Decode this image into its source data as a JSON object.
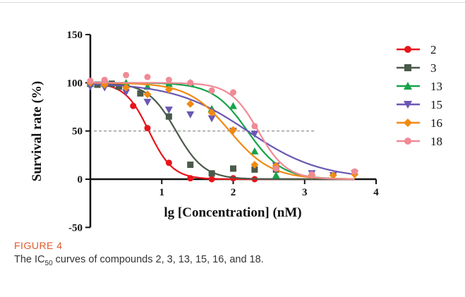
{
  "figure": {
    "label": "FIGURE 4",
    "caption_pre": "The IC",
    "caption_sub": "50",
    "caption_post": " curves of compounds 2, 3, 13, 15, 16, and 18."
  },
  "chart_data": {
    "type": "scatter",
    "xlabel": "lg [Concentration] (nM)",
    "ylabel": "Survival rate (%)",
    "xlim": [
      0,
      4
    ],
    "ylim": [
      -50,
      150
    ],
    "x_ticks": [
      1,
      2,
      3,
      4
    ],
    "y_ticks": [
      -50,
      0,
      50,
      100,
      150
    ],
    "reference_line_y": 50,
    "grid": false,
    "legend_position": "right",
    "series": [
      {
        "name": "2",
        "color": "#e8141b",
        "marker": "circle",
        "ic50_log": 0.82,
        "hill": 2.6,
        "points": [
          [
            0.0,
            98
          ],
          [
            0.6,
            76
          ],
          [
            0.8,
            53
          ],
          [
            1.1,
            17
          ],
          [
            1.4,
            1
          ],
          [
            1.7,
            0
          ],
          [
            2.0,
            1
          ],
          [
            2.3,
            0
          ]
        ]
      },
      {
        "name": "3",
        "color": "#4a5a4a",
        "marker": "square",
        "ic50_log": 1.2,
        "hill": 2.2,
        "points": [
          [
            0.0,
            100
          ],
          [
            0.1,
            98
          ],
          [
            0.2,
            99
          ],
          [
            0.3,
            99
          ],
          [
            0.4,
            96
          ],
          [
            0.7,
            89
          ],
          [
            1.1,
            65
          ],
          [
            1.4,
            15
          ],
          [
            1.7,
            6
          ],
          [
            2.0,
            11
          ],
          [
            2.3,
            10
          ],
          [
            2.6,
            10
          ]
        ]
      },
      {
        "name": "13",
        "color": "#17a34a",
        "marker": "triangle-up",
        "ic50_log": 2.2,
        "hill": 1.8,
        "points": [
          [
            0.0,
            99
          ],
          [
            0.2,
            99
          ],
          [
            0.5,
            100
          ],
          [
            0.8,
            96
          ],
          [
            1.1,
            99
          ],
          [
            1.4,
            100
          ],
          [
            1.7,
            73
          ],
          [
            2.0,
            76
          ],
          [
            2.3,
            29
          ],
          [
            2.6,
            4
          ]
        ]
      },
      {
        "name": "15",
        "color": "#6a57b3",
        "marker": "triangle-down",
        "ic50_log": 2.2,
        "hill": 0.85,
        "points": [
          [
            0.0,
            96
          ],
          [
            0.2,
            95
          ],
          [
            0.5,
            90
          ],
          [
            0.8,
            80
          ],
          [
            1.1,
            72
          ],
          [
            1.4,
            67
          ],
          [
            1.7,
            63
          ],
          [
            2.0,
            50
          ],
          [
            2.3,
            47
          ],
          [
            2.6,
            14
          ],
          [
            3.1,
            6
          ],
          [
            3.4,
            4
          ],
          [
            3.7,
            6
          ]
        ]
      },
      {
        "name": "16",
        "color": "#f08a12",
        "marker": "diamond",
        "ic50_log": 1.95,
        "hill": 1.5,
        "points": [
          [
            0.0,
            100
          ],
          [
            0.2,
            98
          ],
          [
            0.5,
            95
          ],
          [
            0.8,
            88
          ],
          [
            1.1,
            93
          ],
          [
            1.4,
            78
          ],
          [
            1.7,
            69
          ],
          [
            2.0,
            51
          ],
          [
            2.3,
            15
          ],
          [
            2.6,
            14
          ],
          [
            3.1,
            4
          ],
          [
            3.4,
            4
          ],
          [
            3.7,
            5
          ]
        ]
      },
      {
        "name": "18",
        "color": "#f08a96",
        "marker": "circle",
        "ic50_log": 2.35,
        "hill": 2.2,
        "points": [
          [
            0.0,
            102
          ],
          [
            0.2,
            103
          ],
          [
            0.5,
            108
          ],
          [
            0.8,
            106
          ],
          [
            1.1,
            103
          ],
          [
            1.4,
            100
          ],
          [
            1.7,
            92
          ],
          [
            2.0,
            90
          ],
          [
            2.3,
            55
          ],
          [
            2.6,
            11
          ],
          [
            3.1,
            5
          ],
          [
            3.7,
            8
          ]
        ]
      }
    ]
  }
}
